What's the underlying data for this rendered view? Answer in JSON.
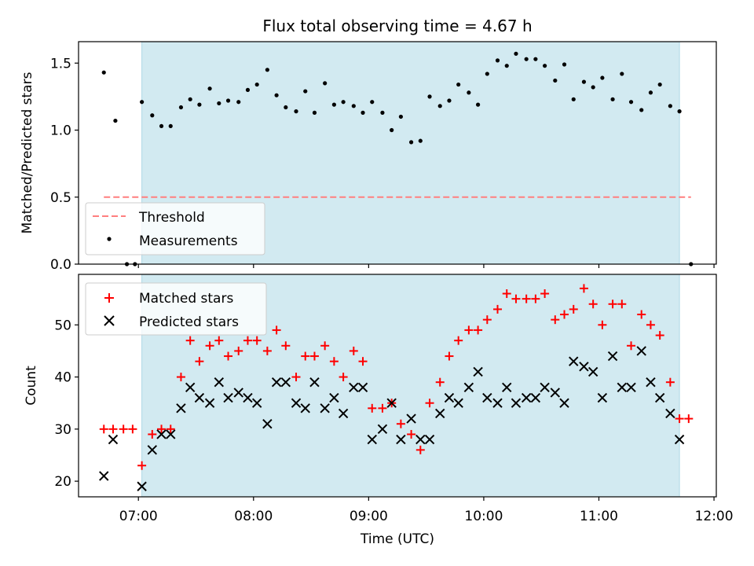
{
  "figure": {
    "title": "Flux total observing time = 4.67 h"
  },
  "chart_data": [
    {
      "type": "scatter",
      "panel": "top",
      "ylabel": "Matched/Predicted stars",
      "xlim": [
        6.48,
        12.02
      ],
      "ylim": [
        0,
        1.66
      ],
      "yticks": [
        0.0,
        0.5,
        1.0,
        1.5
      ],
      "ytick_labels": [
        "0.0",
        "0.5",
        "1.0",
        "1.5"
      ],
      "grid": false,
      "legend": {
        "position": "lower-left",
        "entries": [
          "Threshold",
          "Measurements"
        ]
      },
      "shaded_region": {
        "x": [
          7.03,
          11.7
        ],
        "color": "#add8e6"
      },
      "threshold": {
        "name": "Threshold",
        "value": 0.5,
        "x": [
          6.7,
          11.8
        ],
        "color": "#ff7f7f",
        "style": "dashed"
      },
      "series": [
        {
          "name": "Measurements",
          "color": "#000000",
          "x": [
            6.7,
            6.8,
            6.9,
            6.97,
            7.03,
            7.12,
            7.2,
            7.28,
            7.37,
            7.45,
            7.53,
            7.62,
            7.7,
            7.78,
            7.87,
            7.95,
            8.03,
            8.12,
            8.2,
            8.28,
            8.37,
            8.45,
            8.53,
            8.62,
            8.7,
            8.78,
            8.87,
            8.95,
            9.03,
            9.12,
            9.2,
            9.28,
            9.37,
            9.45,
            9.53,
            9.62,
            9.7,
            9.78,
            9.87,
            9.95,
            10.03,
            10.12,
            10.2,
            10.28,
            10.37,
            10.45,
            10.53,
            10.62,
            10.7,
            10.78,
            10.87,
            10.95,
            11.03,
            11.12,
            11.2,
            11.28,
            11.37,
            11.45,
            11.53,
            11.62,
            11.7,
            11.8
          ],
          "y": [
            1.43,
            1.07,
            0.0,
            0.0,
            1.21,
            1.11,
            1.03,
            1.03,
            1.17,
            1.23,
            1.19,
            1.31,
            1.2,
            1.22,
            1.21,
            1.3,
            1.34,
            1.45,
            1.26,
            1.17,
            1.14,
            1.29,
            1.13,
            1.35,
            1.19,
            1.21,
            1.18,
            1.13,
            1.21,
            1.13,
            1.0,
            1.1,
            0.91,
            0.92,
            1.25,
            1.18,
            1.22,
            1.34,
            1.28,
            1.19,
            1.42,
            1.52,
            1.48,
            1.57,
            1.53,
            1.53,
            1.48,
            1.37,
            1.49,
            1.23,
            1.36,
            1.32,
            1.39,
            1.23,
            1.42,
            1.21,
            1.15,
            1.28,
            1.34,
            1.18,
            1.14,
            0.0
          ]
        }
      ]
    },
    {
      "type": "scatter",
      "panel": "bottom",
      "xlabel": "Time (UTC)",
      "ylabel": "Count",
      "xlim": [
        6.48,
        12.02
      ],
      "ylim": [
        17,
        59.7
      ],
      "xticks": [
        7,
        8,
        9,
        10,
        11,
        12
      ],
      "xtick_labels": [
        "07:00",
        "08:00",
        "09:00",
        "10:00",
        "11:00",
        "12:00"
      ],
      "yticks": [
        20,
        30,
        40,
        50
      ],
      "ytick_labels": [
        "20",
        "30",
        "40",
        "50"
      ],
      "grid": false,
      "legend": {
        "position": "upper-left",
        "entries": [
          "Matched stars",
          "Predicted stars"
        ]
      },
      "shaded_region": {
        "x": [
          7.03,
          11.7
        ],
        "color": "#add8e6"
      },
      "series": [
        {
          "name": "Matched stars",
          "marker": "plus",
          "color": "#ff0000",
          "x": [
            6.7,
            6.78,
            6.87,
            6.95,
            7.03,
            7.12,
            7.2,
            7.28,
            7.37,
            7.45,
            7.53,
            7.62,
            7.7,
            7.78,
            7.87,
            7.95,
            8.03,
            8.12,
            8.2,
            8.28,
            8.37,
            8.45,
            8.53,
            8.62,
            8.7,
            8.78,
            8.87,
            8.95,
            9.03,
            9.12,
            9.2,
            9.28,
            9.37,
            9.45,
            9.53,
            9.62,
            9.7,
            9.78,
            9.87,
            9.95,
            10.03,
            10.12,
            10.2,
            10.28,
            10.37,
            10.45,
            10.53,
            10.62,
            10.7,
            10.78,
            10.87,
            10.95,
            11.03,
            11.12,
            11.2,
            11.28,
            11.37,
            11.45,
            11.53,
            11.62,
            11.7,
            11.78
          ],
          "y": [
            30,
            30,
            30,
            30,
            23,
            29,
            30,
            30,
            40,
            47,
            43,
            46,
            47,
            44,
            45,
            47,
            47,
            45,
            49,
            46,
            40,
            44,
            44,
            46,
            43,
            40,
            45,
            43,
            34,
            34,
            35,
            31,
            29,
            26,
            35,
            39,
            44,
            47,
            49,
            49,
            51,
            53,
            56,
            55,
            55,
            55,
            56,
            51,
            52,
            53,
            57,
            54,
            50,
            54,
            54,
            46,
            52,
            50,
            48,
            39,
            32,
            32
          ]
        },
        {
          "name": "Predicted stars",
          "marker": "x",
          "color": "#000000",
          "x": [
            6.7,
            6.78,
            7.03,
            7.12,
            7.2,
            7.28,
            7.37,
            7.45,
            7.53,
            7.62,
            7.7,
            7.78,
            7.87,
            7.95,
            8.03,
            8.12,
            8.2,
            8.28,
            8.37,
            8.45,
            8.53,
            8.62,
            8.7,
            8.78,
            8.87,
            8.95,
            9.03,
            9.12,
            9.2,
            9.28,
            9.37,
            9.45,
            9.53,
            9.62,
            9.7,
            9.78,
            9.87,
            9.95,
            10.03,
            10.12,
            10.2,
            10.28,
            10.37,
            10.45,
            10.53,
            10.62,
            10.7,
            10.78,
            10.87,
            10.95,
            11.03,
            11.12,
            11.2,
            11.28,
            11.37,
            11.45,
            11.53,
            11.62,
            11.7
          ],
          "y": [
            21,
            28,
            19,
            26,
            29,
            29,
            34,
            38,
            36,
            35,
            39,
            36,
            37,
            36,
            35,
            31,
            39,
            39,
            35,
            34,
            39,
            34,
            36,
            33,
            38,
            38,
            28,
            30,
            35,
            28,
            32,
            28,
            28,
            33,
            36,
            35,
            38,
            41,
            36,
            35,
            38,
            35,
            36,
            36,
            38,
            37,
            35,
            43,
            42,
            41,
            36,
            44,
            38,
            38,
            45,
            39,
            36,
            33,
            28
          ]
        }
      ]
    }
  ]
}
